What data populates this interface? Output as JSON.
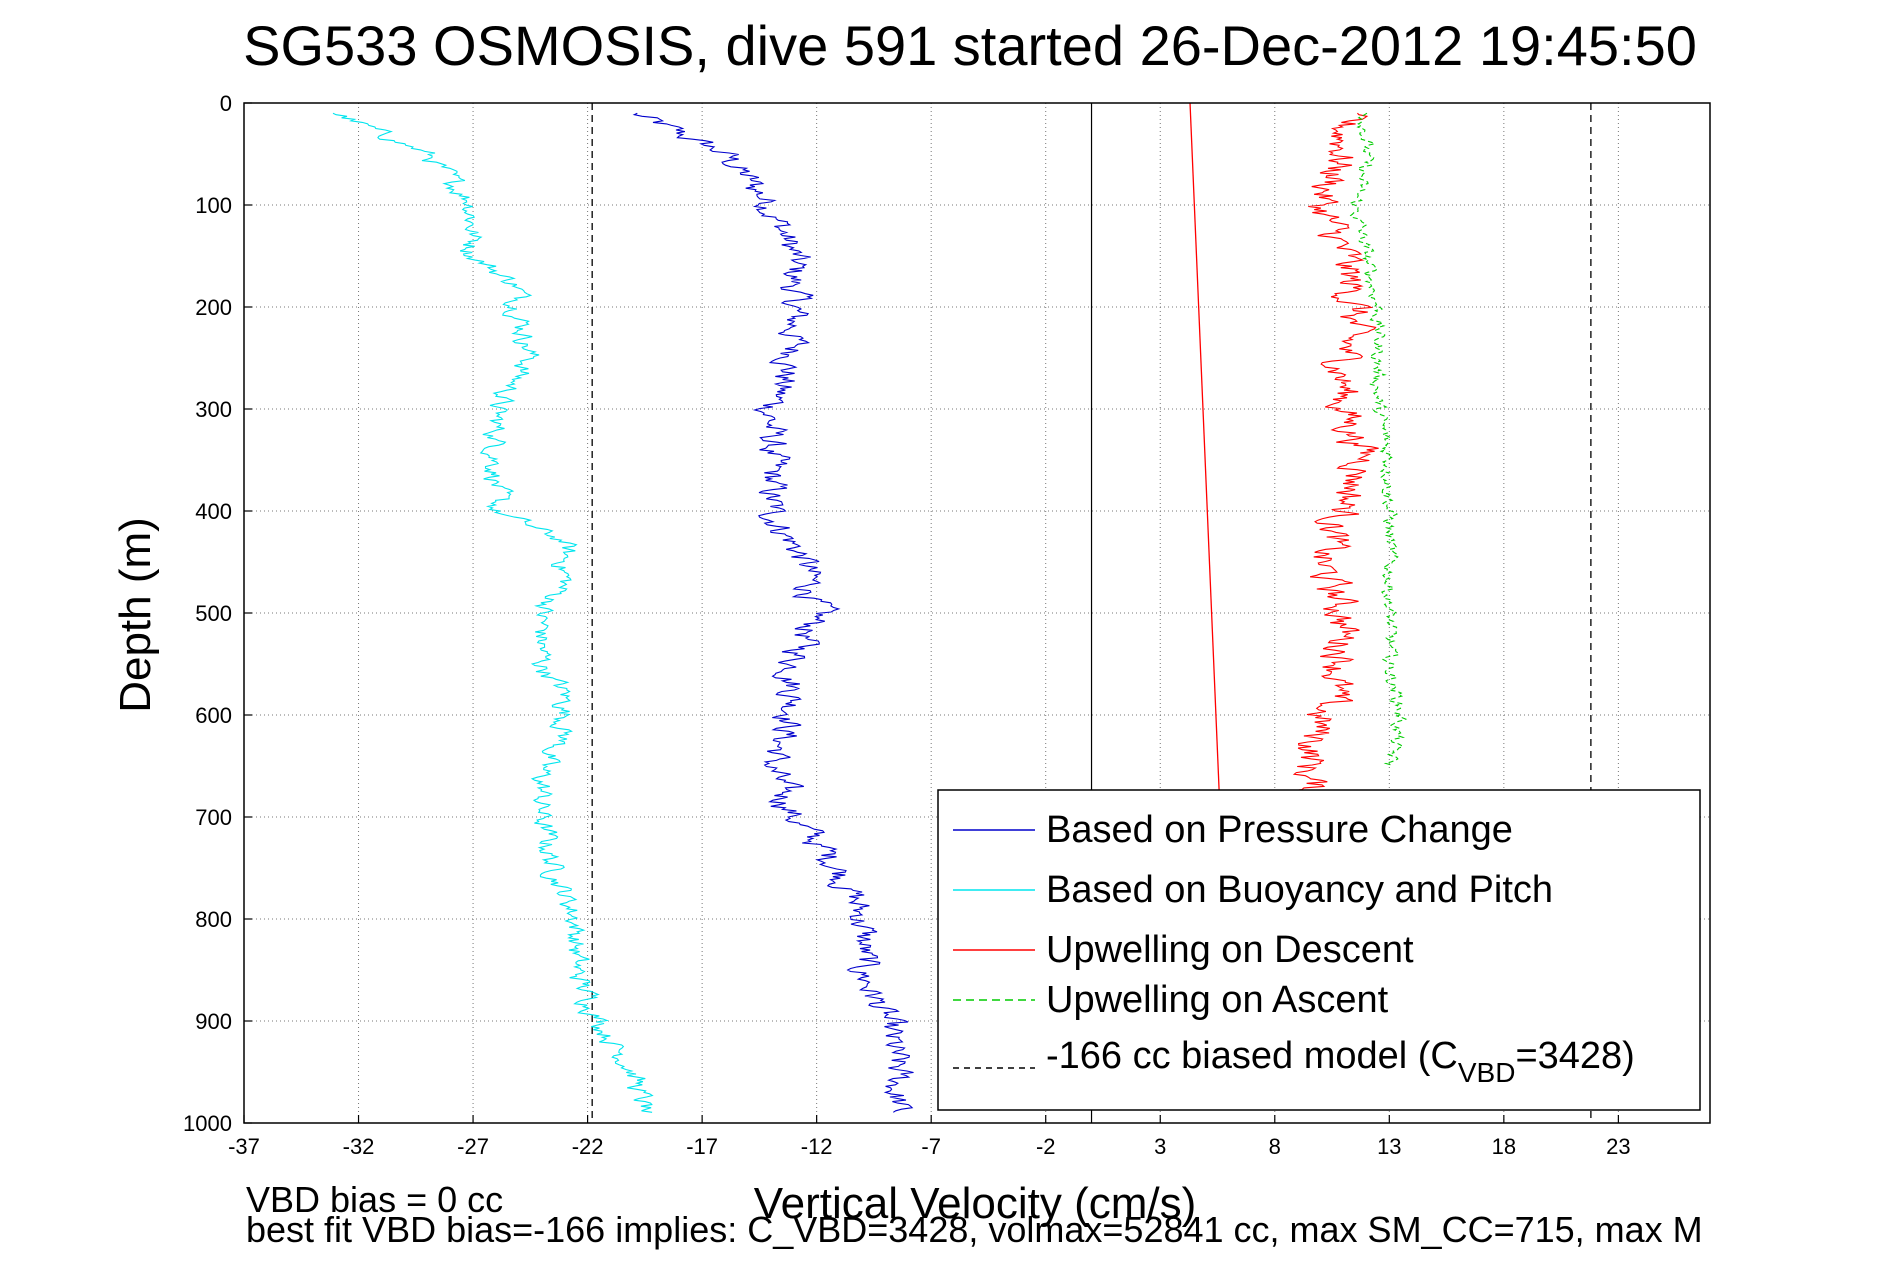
{
  "chart_data": {
    "type": "line",
    "title": "SG533 OSMOSIS, dive 591 started 26-Dec-2012 19:45:50",
    "xlabel": "Vertical Velocity (cm/s)",
    "ylabel": "Depth (m)",
    "xlim": [
      -37,
      27
    ],
    "ylim": [
      1000,
      0
    ],
    "y_reversed": true,
    "grid": true,
    "xticks": [
      "-37",
      "-32",
      "-27",
      "-22",
      "-17",
      "-12",
      "-7",
      "-2",
      "3",
      "8",
      "13",
      "18",
      "23"
    ],
    "yticks": [
      "0",
      "100",
      "200",
      "300",
      "400",
      "500",
      "600",
      "700",
      "800",
      "900",
      "1000"
    ],
    "legend_position": "lower-right",
    "series": [
      {
        "name": "Based on Pressure Change",
        "color": "#0000cc",
        "style": "solid",
        "depth": [
          10,
          50,
          100,
          150,
          200,
          250,
          300,
          350,
          400,
          450,
          500,
          550,
          600,
          650,
          700,
          750,
          800,
          850,
          900,
          950,
          990
        ],
        "velocity": [
          -20,
          -16,
          -14,
          -13,
          -13,
          -13,
          -14,
          -14,
          -14,
          -12.5,
          -12,
          -13,
          -13,
          -14,
          -13,
          -11,
          -10,
          -10,
          -9,
          -8.5,
          -8.5
        ]
      },
      {
        "name": "Based on Buoyancy and Pitch",
        "color": "#00e5ee",
        "style": "solid",
        "depth": [
          10,
          50,
          100,
          150,
          180,
          200,
          250,
          300,
          350,
          400,
          430,
          470,
          500,
          550,
          580,
          620,
          650,
          700,
          750,
          800,
          850,
          900,
          950,
          990
        ],
        "velocity": [
          -33,
          -29,
          -27,
          -27,
          -25,
          -25,
          -24.5,
          -26,
          -26,
          -26,
          -23,
          -23,
          -24,
          -24,
          -23,
          -23,
          -24,
          -24,
          -23.5,
          -22.5,
          -22.5,
          -21.5,
          -20,
          -19.5
        ]
      },
      {
        "name": "Upwelling on Descent",
        "color": "#ff0000",
        "style": "solid",
        "depth": [
          10,
          50,
          100,
          150,
          200,
          250,
          300,
          350,
          400,
          450,
          500,
          550,
          600,
          650,
          700
        ],
        "velocity": [
          11,
          11,
          10,
          11,
          11.5,
          11,
          11,
          12,
          11,
          10,
          11,
          11,
          10,
          9.5,
          9.5
        ]
      },
      {
        "name": "Upwelling on Ascent",
        "color": "#00cc00",
        "style": "dashed",
        "depth": [
          10,
          50,
          100,
          150,
          200,
          250,
          300,
          350,
          400,
          450,
          500,
          550,
          600,
          650
        ],
        "velocity": [
          12,
          12,
          11.5,
          12,
          12.5,
          12.5,
          12.5,
          13,
          13,
          13,
          13,
          13,
          13.5,
          13
        ]
      },
      {
        "name": "-166 cc biased model (C_VBD=3428)",
        "legend_main": "-166 cc biased model (C",
        "legend_sub": "VBD",
        "legend_tail": "=3428)",
        "color": "#000000",
        "style": "dashed",
        "vertical_at": [
          -21.8,
          21.8
        ]
      }
    ],
    "reference_line": {
      "x": 0,
      "color": "#000000"
    },
    "red_trend_line": {
      "x": [
        4.3,
        5.6
      ],
      "depth": [
        0,
        690
      ]
    },
    "footer": [
      "VBD bias = 0 cc",
      "best fit VBD bias=-166 implies: C_VBD=3428, volmax=52841 cc, max SM_CC=715, max M"
    ]
  }
}
